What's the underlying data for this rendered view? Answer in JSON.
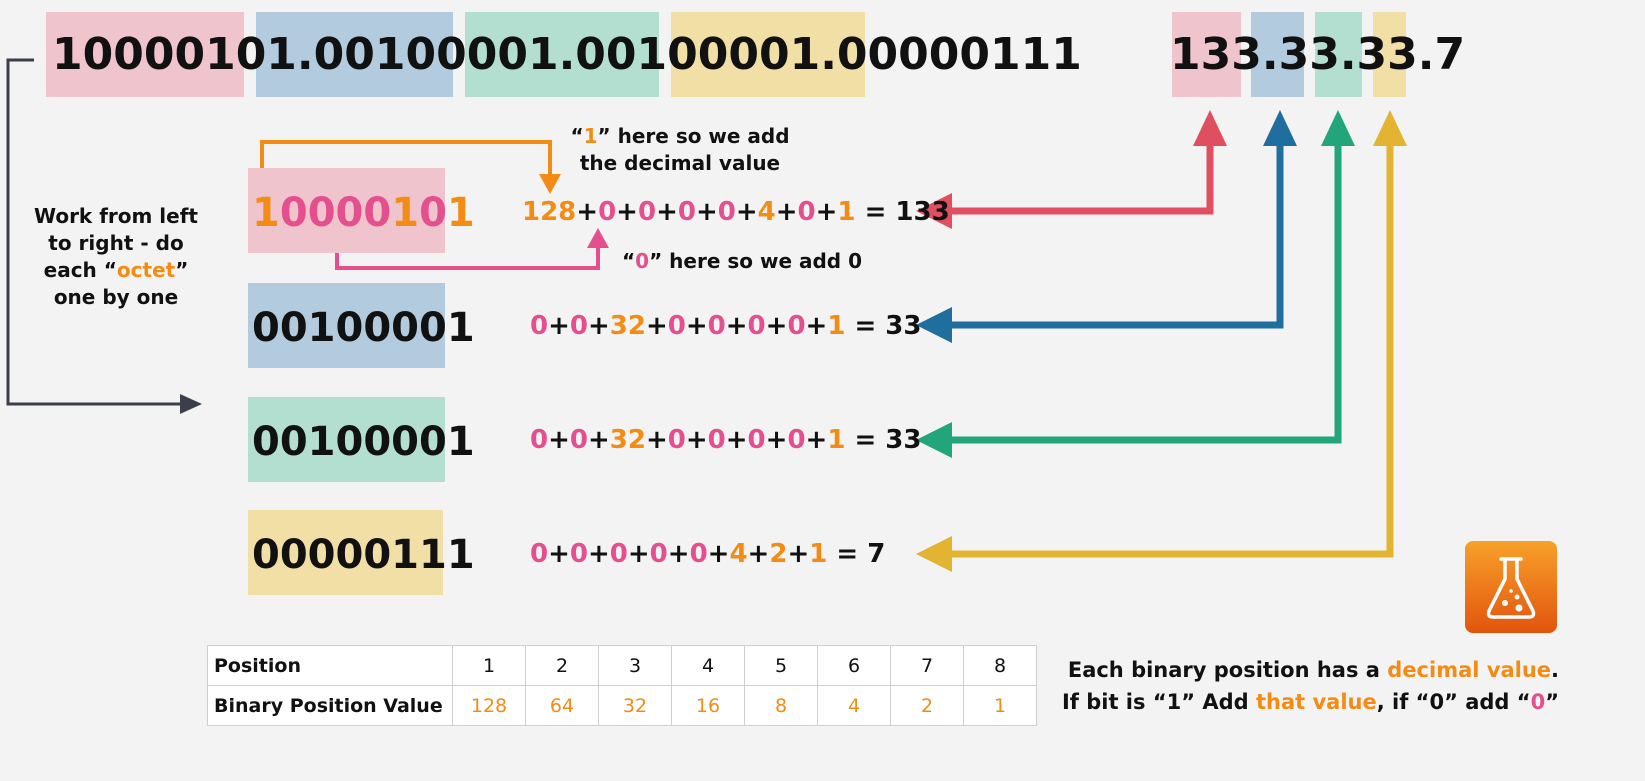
{
  "ip_binary": {
    "octet1": "10000101",
    "dot1": ".",
    "octet2": "00100001",
    "dot2": ".",
    "octet3": "00100001",
    "dot3": ".",
    "octet4": "00000111"
  },
  "ip_decimal": {
    "o1": "133",
    "d1": ".",
    "o2": "33",
    "d2": ".",
    "o3": "33",
    "d3": ".",
    "o4": "7"
  },
  "left_note": {
    "line1": "Work from left",
    "line2": "to right - do",
    "line3_pre": "each “",
    "line3_hl": "octet",
    "line3_post": "”",
    "line4": "one by one"
  },
  "annotation_one": {
    "pre": "“",
    "hl": "1",
    "post": "” here so we add",
    "line2": "the decimal value"
  },
  "annotation_zero": {
    "pre": "“",
    "hl": "0",
    "post": "” here so we add 0"
  },
  "rows": [
    {
      "octet": "10000101",
      "equation": [
        "128",
        "+",
        "0",
        "+",
        "0",
        "+",
        "0",
        "+",
        "0",
        "+",
        "4",
        "+",
        "0",
        "+",
        "1"
      ],
      "result": " = 133"
    },
    {
      "octet": "00100001",
      "equation": [
        "0",
        "+",
        "0",
        "+",
        "32",
        "+",
        "0",
        "+",
        "0",
        "+",
        "0",
        "+",
        "0",
        "+",
        "1"
      ],
      "result": " = 33"
    },
    {
      "octet": "00100001",
      "equation": [
        "0",
        "+",
        "0",
        "+",
        "32",
        "+",
        "0",
        "+",
        "0",
        "+",
        "0",
        "+",
        "0",
        "+",
        "1"
      ],
      "result": " = 33"
    },
    {
      "octet": "00000111",
      "equation": [
        "0",
        "+",
        "0",
        "+",
        "0",
        "+",
        "0",
        "+",
        "0",
        "+",
        "4",
        "+",
        "2",
        "+",
        "1"
      ],
      "result": " = 7"
    }
  ],
  "table": {
    "row1_label": "Position",
    "positions": [
      "1",
      "2",
      "3",
      "4",
      "5",
      "6",
      "7",
      "8"
    ],
    "row2_label": "Binary Position Value",
    "values": [
      "128",
      "64",
      "32",
      "16",
      "8",
      "4",
      "2",
      "1"
    ]
  },
  "bottom_note": {
    "l1_pre": "Each binary position has a ",
    "l1_hl": "decimal value",
    "l1_post": ".",
    "l2_pre": "If bit is “1” Add ",
    "l2_hl": "that value",
    "l2_mid": ", if “0” add “",
    "l2_hl2": "0",
    "l2_post": "”"
  },
  "colors": {
    "pink": "#f0c4cc",
    "blue": "#b2cbdf",
    "green": "#b2dfd0",
    "yellow": "#f2dfa6",
    "arrow_red": "#e04f5f",
    "arrow_blue": "#1f6e9e",
    "arrow_green": "#22a57a",
    "arrow_yellow": "#e2b431",
    "orange": "#f28c14",
    "magenta": "#e4508e"
  },
  "icons": {
    "flask": "flask-icon"
  }
}
